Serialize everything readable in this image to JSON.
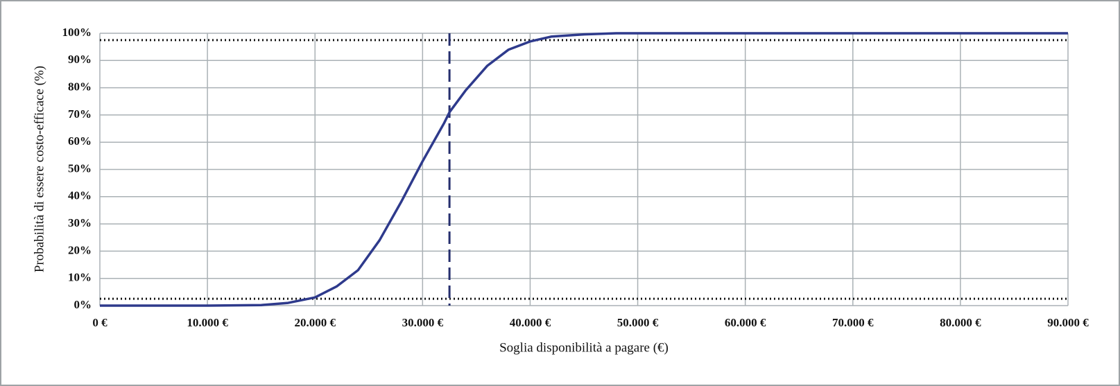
{
  "chart_data": {
    "type": "line",
    "x_label": "Soglia disponibilità a pagare (€)",
    "y_label": "Probabilità di essere costo-efficace (%)",
    "x": [
      0,
      10000,
      15000,
      17500,
      20000,
      22000,
      24000,
      26000,
      28000,
      30000,
      32000,
      32500,
      34000,
      36000,
      38000,
      40000,
      42000,
      45000,
      48000,
      90000
    ],
    "values": [
      0,
      0,
      0.2,
      1,
      3,
      7,
      13,
      24,
      38,
      53,
      67,
      71,
      79,
      88,
      94,
      97,
      98.8,
      99.6,
      100,
      100
    ],
    "color": "#2e3a8c",
    "xlim": [
      0,
      90000
    ],
    "ylim": [
      0,
      100
    ],
    "xticks": [
      {
        "value": 0,
        "label": "0 €"
      },
      {
        "value": 10000,
        "label": "10.000 €"
      },
      {
        "value": 20000,
        "label": "20.000 €"
      },
      {
        "value": 30000,
        "label": "30.000 €"
      },
      {
        "value": 40000,
        "label": "40.000 €"
      },
      {
        "value": 50000,
        "label": "50.000 €"
      },
      {
        "value": 60000,
        "label": "60.000 €"
      },
      {
        "value": 70000,
        "label": "70.000 €"
      },
      {
        "value": 80000,
        "label": "80.000 €"
      },
      {
        "value": 90000,
        "label": "90.000 €"
      }
    ],
    "yticks": [
      {
        "value": 0,
        "label": "0%"
      },
      {
        "value": 10,
        "label": "10%"
      },
      {
        "value": 20,
        "label": "20%"
      },
      {
        "value": 30,
        "label": "30%"
      },
      {
        "value": 40,
        "label": "40%"
      },
      {
        "value": 50,
        "label": "50%"
      },
      {
        "value": 60,
        "label": "60%"
      },
      {
        "value": 70,
        "label": "70%"
      },
      {
        "value": 80,
        "label": "80%"
      },
      {
        "value": 90,
        "label": "90%"
      },
      {
        "value": 100,
        "label": "100%"
      }
    ],
    "grid": true,
    "reference_lines": {
      "horizontal": [
        97.5,
        2.5
      ],
      "vertical": 32500
    }
  }
}
